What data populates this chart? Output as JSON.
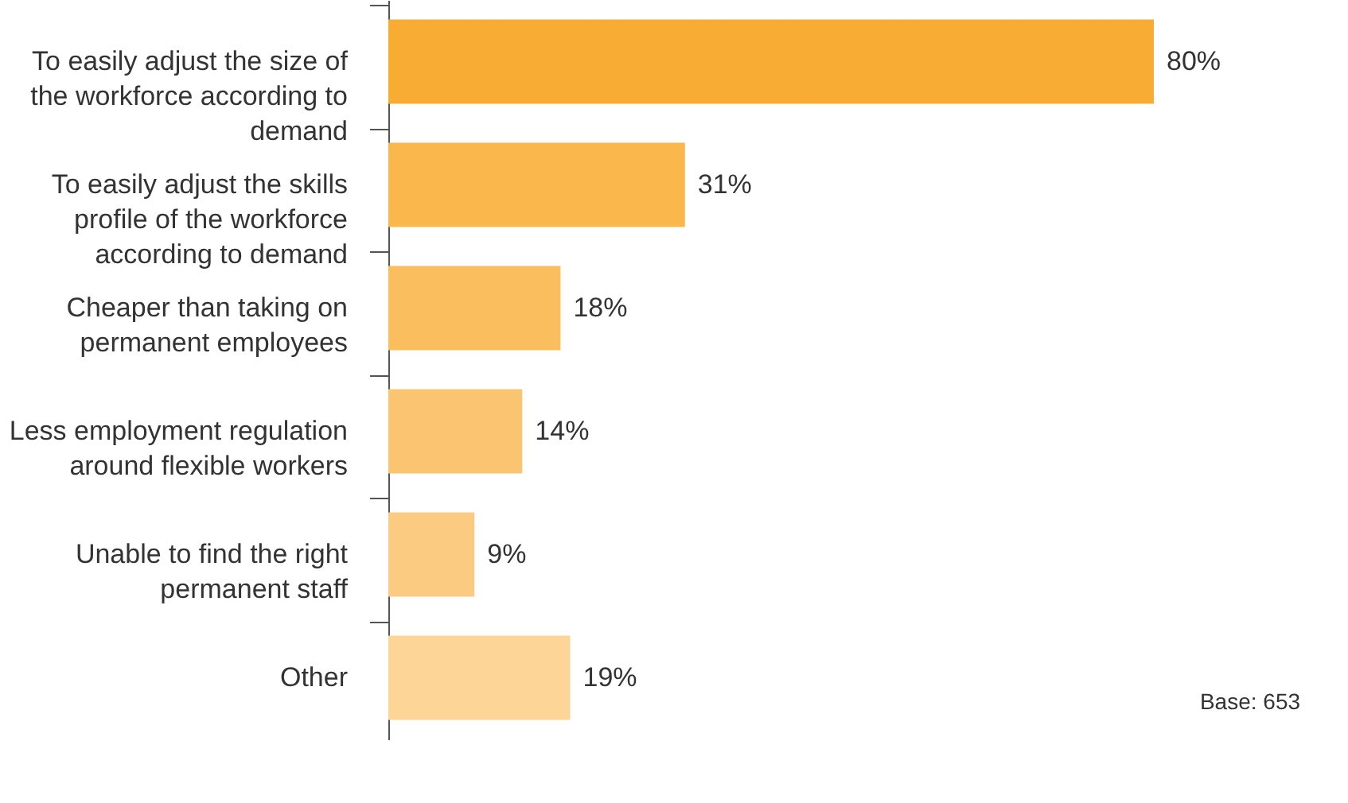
{
  "chart_data": {
    "type": "bar",
    "orientation": "horizontal",
    "value_labels": [
      "80%",
      "31%",
      "18%",
      "14%",
      "9%",
      "19%"
    ],
    "categories": [
      "To easily adjust the size of the workforce according to demand",
      "To easily adjust the skills profile of the workforce according to demand",
      "Cheaper than taking on permanent employees",
      "Less employment regulation around flexible workers",
      "Unable to find the right permanent staff",
      "Other"
    ],
    "values": [
      80,
      31,
      18,
      14,
      9,
      19
    ],
    "colors": [
      "#f9ac33",
      "#fab74c",
      "#fbbe5e",
      "#fbc470",
      "#fccb82",
      "#fcd597"
    ],
    "annotations": [
      "Base: 653"
    ]
  }
}
